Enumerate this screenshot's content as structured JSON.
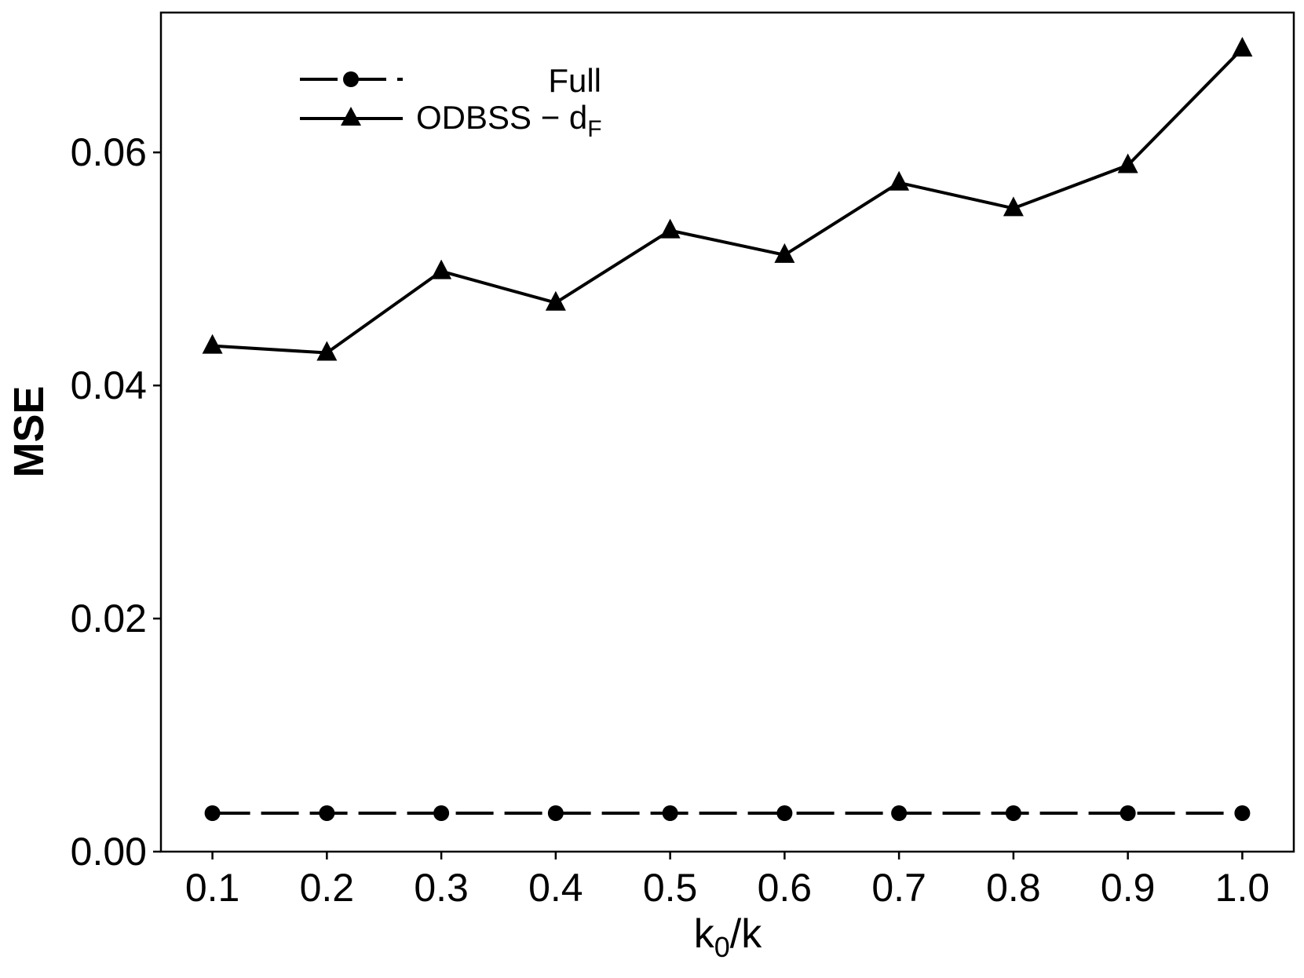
{
  "chart_data": {
    "type": "line",
    "title": "",
    "xlabel": "k0/k",
    "ylabel": "MSE",
    "x": [
      0.1,
      0.2,
      0.3,
      0.4,
      0.5,
      0.6,
      0.7,
      0.8,
      0.9,
      1.0
    ],
    "x_tick_labels": [
      "0.1",
      "0.2",
      "0.3",
      "0.4",
      "0.5",
      "0.6",
      "0.7",
      "0.8",
      "0.9",
      "1.0"
    ],
    "y_ticks": [
      0.0,
      0.02,
      0.04,
      0.06
    ],
    "y_tick_labels": [
      "0.00",
      "0.02",
      "0.04",
      "0.06"
    ],
    "xlim": [
      0.055,
      1.045
    ],
    "ylim": [
      0.0,
      0.072
    ],
    "grid": false,
    "legend_position": "top-left",
    "series": [
      {
        "name": "Full",
        "marker": "circle",
        "line_style": "dashed",
        "color": "#000000",
        "values": [
          0.0033,
          0.0033,
          0.0033,
          0.0033,
          0.0033,
          0.0033,
          0.0033,
          0.0033,
          0.0033,
          0.0033
        ]
      },
      {
        "name": "ODBSS − dF",
        "marker": "triangle",
        "line_style": "solid",
        "color": "#000000",
        "values": [
          0.0434,
          0.0428,
          0.0498,
          0.0471,
          0.0533,
          0.0512,
          0.0574,
          0.0552,
          0.0589,
          0.0689
        ]
      }
    ]
  }
}
